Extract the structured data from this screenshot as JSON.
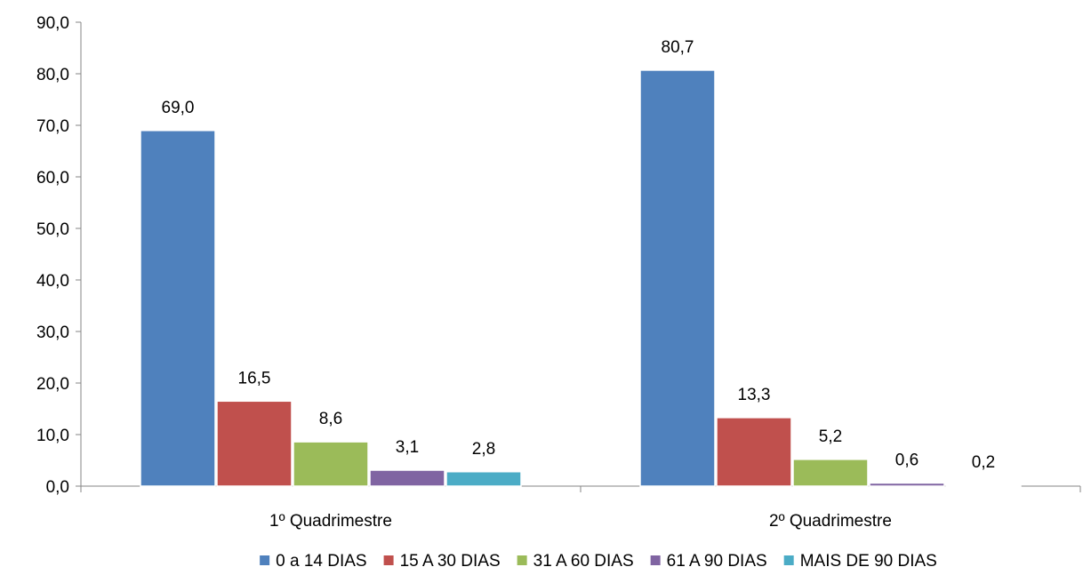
{
  "chart_data": {
    "type": "bar",
    "categories": [
      "1º Quadrimestre",
      "2º Quadrimestre"
    ],
    "series": [
      {
        "name": "0 a 14 DIAS",
        "values": [
          69.0,
          80.7
        ],
        "labels": [
          "69,0",
          "80,7"
        ],
        "color": "#4F81BD"
      },
      {
        "name": "15 A 30 DIAS",
        "values": [
          16.5,
          13.3
        ],
        "labels": [
          "16,5",
          "13,3"
        ],
        "color": "#C0504D"
      },
      {
        "name": "31 A 60 DIAS",
        "values": [
          8.6,
          5.2
        ],
        "labels": [
          "8,6",
          "5,2"
        ],
        "color": "#9BBB59"
      },
      {
        "name": "61 A 90 DIAS",
        "values": [
          3.1,
          0.6
        ],
        "labels": [
          "3,1",
          "0,6"
        ],
        "color": "#8064A2"
      },
      {
        "name": "MAIS DE 90 DIAS",
        "values": [
          2.8,
          0.2
        ],
        "labels": [
          "2,8",
          "0,2"
        ],
        "color": "#4BACC6"
      }
    ],
    "ylim": [
      0,
      90
    ],
    "yticks": [
      0,
      10,
      20,
      30,
      40,
      50,
      60,
      70,
      80,
      90
    ],
    "ytick_labels": [
      "0,0",
      "10,0",
      "20,0",
      "30,0",
      "40,0",
      "50,0",
      "60,0",
      "70,0",
      "80,0",
      "90,0"
    ],
    "title": "",
    "xlabel": "",
    "ylabel": "",
    "grid": false,
    "legend_position": "bottom"
  }
}
